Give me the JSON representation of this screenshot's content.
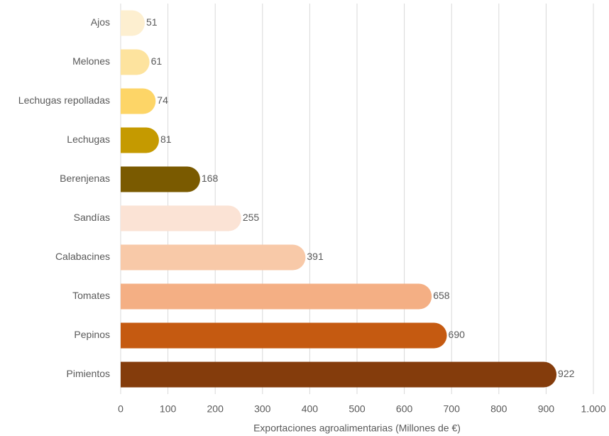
{
  "chart_data": {
    "type": "bar",
    "orientation": "horizontal",
    "categories": [
      "Ajos",
      "Melones",
      "Lechugas repolladas",
      "Lechugas",
      "Berenjenas",
      "Sandías",
      "Calabacines",
      "Tomates",
      "Pepinos",
      "Pimientos"
    ],
    "values": [
      51,
      61,
      74,
      81,
      168,
      255,
      391,
      658,
      690,
      922
    ],
    "colors": [
      "#fdefd0",
      "#fde39e",
      "#fdd567",
      "#c59a00",
      "#7a5a00",
      "#fbe3d5",
      "#f8c9a8",
      "#f4af84",
      "#c55a11",
      "#843c0c"
    ],
    "xlabel": "Exportaciones agroalimentarias (Millones de €)",
    "xlim": [
      0,
      1000
    ],
    "xticks": [
      0,
      100,
      200,
      300,
      400,
      500,
      600,
      700,
      800,
      900,
      {
        "value": 1000,
        "label": "1.000"
      }
    ],
    "grid": true
  }
}
